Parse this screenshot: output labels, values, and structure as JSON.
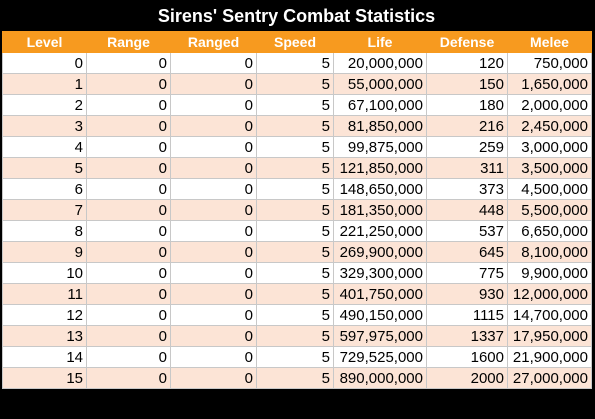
{
  "title": "Sirens' Sentry Combat Statistics",
  "colors": {
    "header_bg": "#f79a1f",
    "row_alt_bg": "#fce4d6",
    "title_bg": "#000000"
  },
  "columns": [
    "Level",
    "Range",
    "Ranged",
    "Speed",
    "Life",
    "Defense",
    "Melee"
  ],
  "rows": [
    [
      "0",
      "0",
      "0",
      "5",
      "20,000,000",
      "120",
      "750,000"
    ],
    [
      "1",
      "0",
      "0",
      "5",
      "55,000,000",
      "150",
      "1,650,000"
    ],
    [
      "2",
      "0",
      "0",
      "5",
      "67,100,000",
      "180",
      "2,000,000"
    ],
    [
      "3",
      "0",
      "0",
      "5",
      "81,850,000",
      "216",
      "2,450,000"
    ],
    [
      "4",
      "0",
      "0",
      "5",
      "99,875,000",
      "259",
      "3,000,000"
    ],
    [
      "5",
      "0",
      "0",
      "5",
      "121,850,000",
      "311",
      "3,500,000"
    ],
    [
      "6",
      "0",
      "0",
      "5",
      "148,650,000",
      "373",
      "4,500,000"
    ],
    [
      "7",
      "0",
      "0",
      "5",
      "181,350,000",
      "448",
      "5,500,000"
    ],
    [
      "8",
      "0",
      "0",
      "5",
      "221,250,000",
      "537",
      "6,650,000"
    ],
    [
      "9",
      "0",
      "0",
      "5",
      "269,900,000",
      "645",
      "8,100,000"
    ],
    [
      "10",
      "0",
      "0",
      "5",
      "329,300,000",
      "775",
      "9,900,000"
    ],
    [
      "11",
      "0",
      "0",
      "5",
      "401,750,000",
      "930",
      "12,000,000"
    ],
    [
      "12",
      "0",
      "0",
      "5",
      "490,150,000",
      "1115",
      "14,700,000"
    ],
    [
      "13",
      "0",
      "0",
      "5",
      "597,975,000",
      "1337",
      "17,950,000"
    ],
    [
      "14",
      "0",
      "0",
      "5",
      "729,525,000",
      "1600",
      "21,900,000"
    ],
    [
      "15",
      "0",
      "0",
      "5",
      "890,000,000",
      "2000",
      "27,000,000"
    ]
  ]
}
